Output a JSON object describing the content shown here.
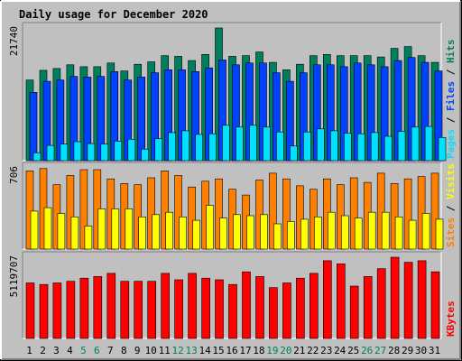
{
  "chart_data": {
    "type": "bar",
    "title": "Daily usage for December 2020",
    "categories": [
      "1",
      "2",
      "3",
      "4",
      "5",
      "6",
      "7",
      "8",
      "9",
      "10",
      "11",
      "12",
      "13",
      "14",
      "15",
      "16",
      "17",
      "18",
      "19",
      "20",
      "21",
      "22",
      "23",
      "24",
      "25",
      "26",
      "27",
      "28",
      "29",
      "30",
      "31"
    ],
    "weekend_days": [
      "5",
      "6",
      "12",
      "13",
      "19",
      "20",
      "26",
      "27"
    ],
    "colors": {
      "hits": "#007f5f",
      "files": "#0042ff",
      "pages": "#00e0ff",
      "visits": "#ffff00",
      "sites": "#ff8000",
      "kbytes": "#ff0000",
      "weekday_label": "#000000",
      "weekend_label": "#00805c",
      "title": "#0000ff",
      "panel_bg": "#c0c0c0",
      "frame_bg": "#c0c0c0"
    },
    "panels": [
      {
        "id": "hits-files-pages",
        "max_label": "21740",
        "ymax": 21740,
        "legend": [
          {
            "text": "Pages",
            "color": "#00e0ff"
          },
          {
            "text": " / ",
            "color": "#000000"
          },
          {
            "text": "Files",
            "color": "#0042ff"
          },
          {
            "text": " / ",
            "color": "#000000"
          },
          {
            "text": "Hits",
            "color": "#007f5f"
          }
        ],
        "series": [
          {
            "name": "Hits",
            "values": [
              13200,
              14800,
              15100,
              15700,
              15400,
              15400,
              16000,
              14700,
              15800,
              16200,
              17200,
              17100,
              16400,
              17400,
              21740,
              17100,
              17200,
              17800,
              16100,
              14900,
              15800,
              17200,
              17400,
              17200,
              17200,
              17200,
              17000,
              18400,
              18700,
              17200,
              16100
            ]
          },
          {
            "name": "Files",
            "values": [
              11200,
              13000,
              13200,
              13800,
              13700,
              13800,
              14600,
              13200,
              13700,
              14400,
              14900,
              14900,
              14600,
              15200,
              16500,
              15700,
              16000,
              16000,
              14400,
              13000,
              14400,
              15700,
              15700,
              15400,
              16000,
              15700,
              15400,
              16400,
              16900,
              16100,
              14700
            ]
          },
          {
            "name": "Pages",
            "values": [
              1300,
              2500,
              2700,
              3100,
              2800,
              2700,
              3200,
              3500,
              1900,
              3600,
              4600,
              4900,
              4300,
              4400,
              5800,
              5500,
              5800,
              5500,
              4700,
              2400,
              4700,
              5200,
              4900,
              4500,
              4400,
              4600,
              4000,
              4800,
              5500,
              5600,
              3800
            ]
          }
        ]
      },
      {
        "id": "visits-sites",
        "max_label": "706",
        "ymax": 706,
        "legend": [
          {
            "text": "Sites",
            "color": "#ff8000"
          },
          {
            "text": " / ",
            "color": "#000000"
          },
          {
            "text": "Visits",
            "color": "#ffff00"
          }
        ],
        "series": [
          {
            "name": "Sites",
            "values": [
              680,
              700,
              560,
              640,
              690,
              690,
              610,
              570,
              560,
              620,
              680,
              640,
              540,
              590,
              610,
              520,
              470,
              600,
              660,
              610,
              550,
              520,
              610,
              560,
              620,
              580,
              660,
              570,
              610,
              630,
              660
            ]
          },
          {
            "name": "Visits",
            "values": [
              330,
              360,
              310,
              280,
              200,
              350,
              350,
              350,
              280,
              300,
              320,
              280,
              250,
              380,
              270,
              300,
              290,
              300,
              220,
              240,
              260,
              280,
              320,
              290,
              270,
              320,
              320,
              280,
              250,
              310,
              260
            ]
          }
        ]
      },
      {
        "id": "kbytes",
        "max_label": "5119707",
        "ymax": 5119707,
        "legend": [
          {
            "text": "KBytes",
            "color": "#ff0000"
          }
        ],
        "series": [
          {
            "name": "KBytes",
            "values": [
              3500000,
              3400000,
              3500000,
              3600000,
              3800000,
              3900000,
              4100000,
              3600000,
              3600000,
              3600000,
              4100000,
              3700000,
              4100000,
              3800000,
              3700000,
              3400000,
              4200000,
              3900000,
              3200000,
              3500000,
              3800000,
              4100000,
              4900000,
              4700000,
              3300000,
              3900000,
              4400000,
              5119707,
              4800000,
              4900000,
              4200000
            ]
          }
        ]
      }
    ]
  }
}
